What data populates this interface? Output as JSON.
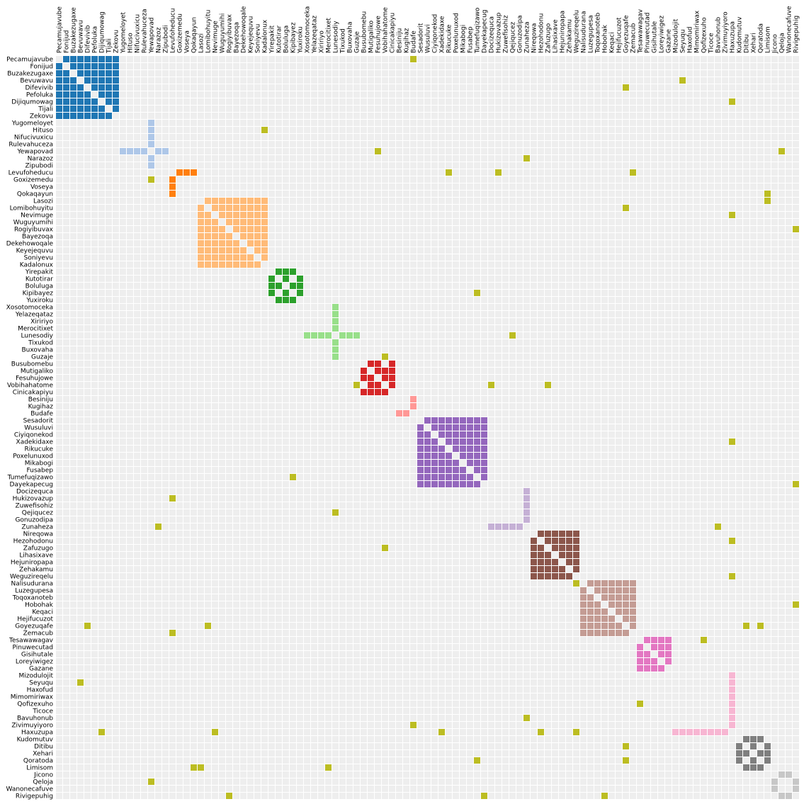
{
  "chart_data": {
    "type": "heatmap",
    "subtype": "adjacency-matrix",
    "names": [
      "Pecamujavube",
      "Fonijud",
      "Buzakezugaxe",
      "Bevuwavu",
      "Difevivib",
      "Pefoluka",
      "Dijiqumowag",
      "Tijali",
      "Zekovu",
      "Yugomeloyet",
      "Hituso",
      "Nifucivuxicu",
      "Rulevahuceza",
      "Yewapovad",
      "Narazoz",
      "Zipubodi",
      "Levufoheducu",
      "Goxizemedu",
      "Voseya",
      "Qokaqayun",
      "Lasozi",
      "Lomibohuyitu",
      "Nevimuge",
      "Wuguyumihi",
      "Rogiyibuvax",
      "Bayezoqa",
      "Dekehowoqale",
      "Keyejequvu",
      "Soniyevu",
      "Kadalonux",
      "Yirepakit",
      "Kutotirar",
      "Boluluga",
      "Kipibayez",
      "Yuxiroku",
      "Xosotomoceka",
      "Yelazeqataz",
      "Xiririyo",
      "Merocitixet",
      "Lunesodiy",
      "Tixukod",
      "Buxovaha",
      "Guzaje",
      "Busubomebu",
      "Mutigaliko",
      "Fesuhujowe",
      "Vobihahatome",
      "Cinicakapiyu",
      "Besiniju",
      "Kugihaz",
      "Budafe",
      "Sesadorit",
      "Wusuluvi",
      "Ciyiqonekod",
      "Xadekidaxe",
      "Rikucuke",
      "Poxelunuxod",
      "Mikabogi",
      "Fusabep",
      "Tumefuqizawo",
      "Dayekapecug",
      "Docizequca",
      "Hukizovazup",
      "Zuwefisohiz",
      "Qejiqucez",
      "Gonuzodipa",
      "Zunaheza",
      "Nireqowa",
      "Hezohodonu",
      "Zafuzugo",
      "Lihasixave",
      "Hejuniropapa",
      "Zehakamu",
      "Weguzireqelu",
      "Nalisudurana",
      "Luzegupesa",
      "Toqoxanoteb",
      "Hobohak",
      "Keqaci",
      "Hejifucuzot",
      "Goyezuqafe",
      "Zemacub",
      "Tesawawagav",
      "Pinuwecutad",
      "Gisihutale",
      "Loreyiwigez",
      "Gazane",
      "Mizodulojit",
      "Seyuqu",
      "Haxofud",
      "Mimomiriwax",
      "Qofizexuho",
      "Ticoce",
      "Bavuhonub",
      "Zivimuyiyoro",
      "Haxuzupa",
      "Kudomutuv",
      "Ditibu",
      "Xehari",
      "Qoratoda",
      "Limisom",
      "Jicono",
      "Qeloja",
      "Wanonecafuve",
      "Rivigepuhig"
    ],
    "groups": [
      {
        "start": 0,
        "end": 8,
        "pattern": "clique",
        "color": "#1f77b4"
      },
      {
        "start": 9,
        "end": 15,
        "pattern": "star",
        "hub": 13,
        "color": "#aec7e8"
      },
      {
        "start": 16,
        "end": 19,
        "pattern": "star",
        "hub": 16,
        "color": "#ff7f0e"
      },
      {
        "start": 20,
        "end": 29,
        "pattern": "clique",
        "color": "#ffbb78"
      },
      {
        "start": 30,
        "end": 34,
        "pattern": "clique",
        "color": "#2ca02c",
        "missing": [
          [
            30,
            34
          ],
          [
            31,
            33
          ]
        ]
      },
      {
        "start": 35,
        "end": 42,
        "pattern": "star",
        "hub": 39,
        "color": "#98df8a"
      },
      {
        "start": 43,
        "end": 47,
        "pattern": "clique",
        "color": "#d62728",
        "missing": [
          [
            43,
            46
          ]
        ]
      },
      {
        "start": 48,
        "end": 50,
        "pattern": "star",
        "hub": 50,
        "color": "#ff9896"
      },
      {
        "start": 51,
        "end": 60,
        "pattern": "clique",
        "color": "#9467bd"
      },
      {
        "start": 61,
        "end": 66,
        "pattern": "star",
        "hub": 66,
        "color": "#c5b0d5"
      },
      {
        "start": 67,
        "end": 73,
        "pattern": "clique",
        "color": "#8c564b"
      },
      {
        "start": 74,
        "end": 81,
        "pattern": "clique",
        "color": "#c49c94"
      },
      {
        "start": 82,
        "end": 86,
        "pattern": "clique",
        "color": "#e377c2"
      },
      {
        "start": 87,
        "end": 95,
        "pattern": "star",
        "hub": 95,
        "color": "#f7b6d2"
      },
      {
        "start": 96,
        "end": 100,
        "pattern": "clique",
        "color": "#7f7f7f",
        "missing": [
          [
            96,
            100
          ],
          [
            97,
            99
          ]
        ]
      },
      {
        "start": 101,
        "end": 104,
        "pattern": "clique",
        "color": "#c7c7c7",
        "missing": [
          [
            101,
            104
          ],
          [
            102,
            103
          ]
        ]
      }
    ],
    "inter_group_edges": [
      [
        0,
        50
      ],
      [
        3,
        88
      ],
      [
        4,
        80
      ],
      [
        6,
        95
      ],
      [
        10,
        29
      ],
      [
        13,
        45
      ],
      [
        13,
        102
      ],
      [
        14,
        66
      ],
      [
        16,
        55
      ],
      [
        16,
        62
      ],
      [
        16,
        81
      ],
      [
        17,
        13
      ],
      [
        19,
        100
      ],
      [
        20,
        100
      ],
      [
        21,
        80
      ],
      [
        22,
        95
      ],
      [
        24,
        104
      ],
      [
        33,
        59
      ],
      [
        39,
        64
      ],
      [
        42,
        46
      ],
      [
        46,
        61
      ],
      [
        46,
        69
      ],
      [
        46,
        42
      ],
      [
        54,
        95
      ],
      [
        59,
        33
      ],
      [
        60,
        104
      ],
      [
        62,
        16
      ],
      [
        64,
        39
      ],
      [
        66,
        14
      ],
      [
        66,
        93
      ],
      [
        68,
        95
      ],
      [
        69,
        46
      ],
      [
        73,
        95
      ],
      [
        74,
        73
      ],
      [
        77,
        104
      ],
      [
        80,
        4
      ],
      [
        80,
        21
      ],
      [
        80,
        97
      ],
      [
        80,
        99
      ],
      [
        81,
        16
      ],
      [
        82,
        91
      ],
      [
        88,
        3
      ],
      [
        91,
        82
      ],
      [
        93,
        66
      ],
      [
        94,
        50
      ],
      [
        95,
        6
      ],
      [
        95,
        22
      ],
      [
        95,
        54
      ],
      [
        95,
        68
      ],
      [
        95,
        73
      ],
      [
        97,
        80
      ],
      [
        99,
        59
      ],
      [
        99,
        80
      ],
      [
        100,
        19
      ],
      [
        100,
        20
      ],
      [
        100,
        38
      ],
      [
        102,
        13
      ],
      [
        104,
        24
      ],
      [
        104,
        60
      ],
      [
        104,
        77
      ]
    ],
    "edge_color": "#bcbd22",
    "empty_color": "#eeeeee"
  }
}
